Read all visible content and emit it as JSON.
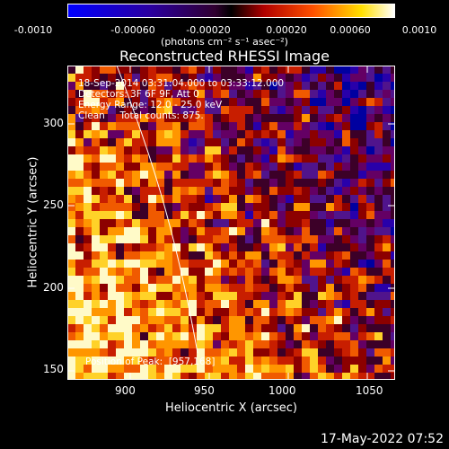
{
  "colorbar": {
    "ticks": [
      "-0.0010",
      "-0.00060",
      "-0.00020",
      "0.00020",
      "0.00060",
      "0.0010"
    ],
    "units": "(photons cm⁻² s⁻¹ asec⁻²)"
  },
  "title": "Reconstructed RHESSI Image",
  "annotations": {
    "time_range": "18-Sep-2014 03:31:04.000 to 03:33:12.000",
    "detectors": "Detectors: 3F 6F 9F, Att 0",
    "energy": "Energy Range: 12.0 - 25.0 keV",
    "clean": "Clean     Total counts: 875.",
    "peak": "Position of Peak:  [957,168]"
  },
  "axes": {
    "xlabel": "Heliocentric X (arcsec)",
    "ylabel": "Heliocentric Y (arcsec)",
    "xticks": [
      "900",
      "950",
      "1000",
      "1050"
    ],
    "yticks": [
      "150",
      "200",
      "250",
      "300"
    ]
  },
  "datestamp": "17-May-2022 07:52"
}
